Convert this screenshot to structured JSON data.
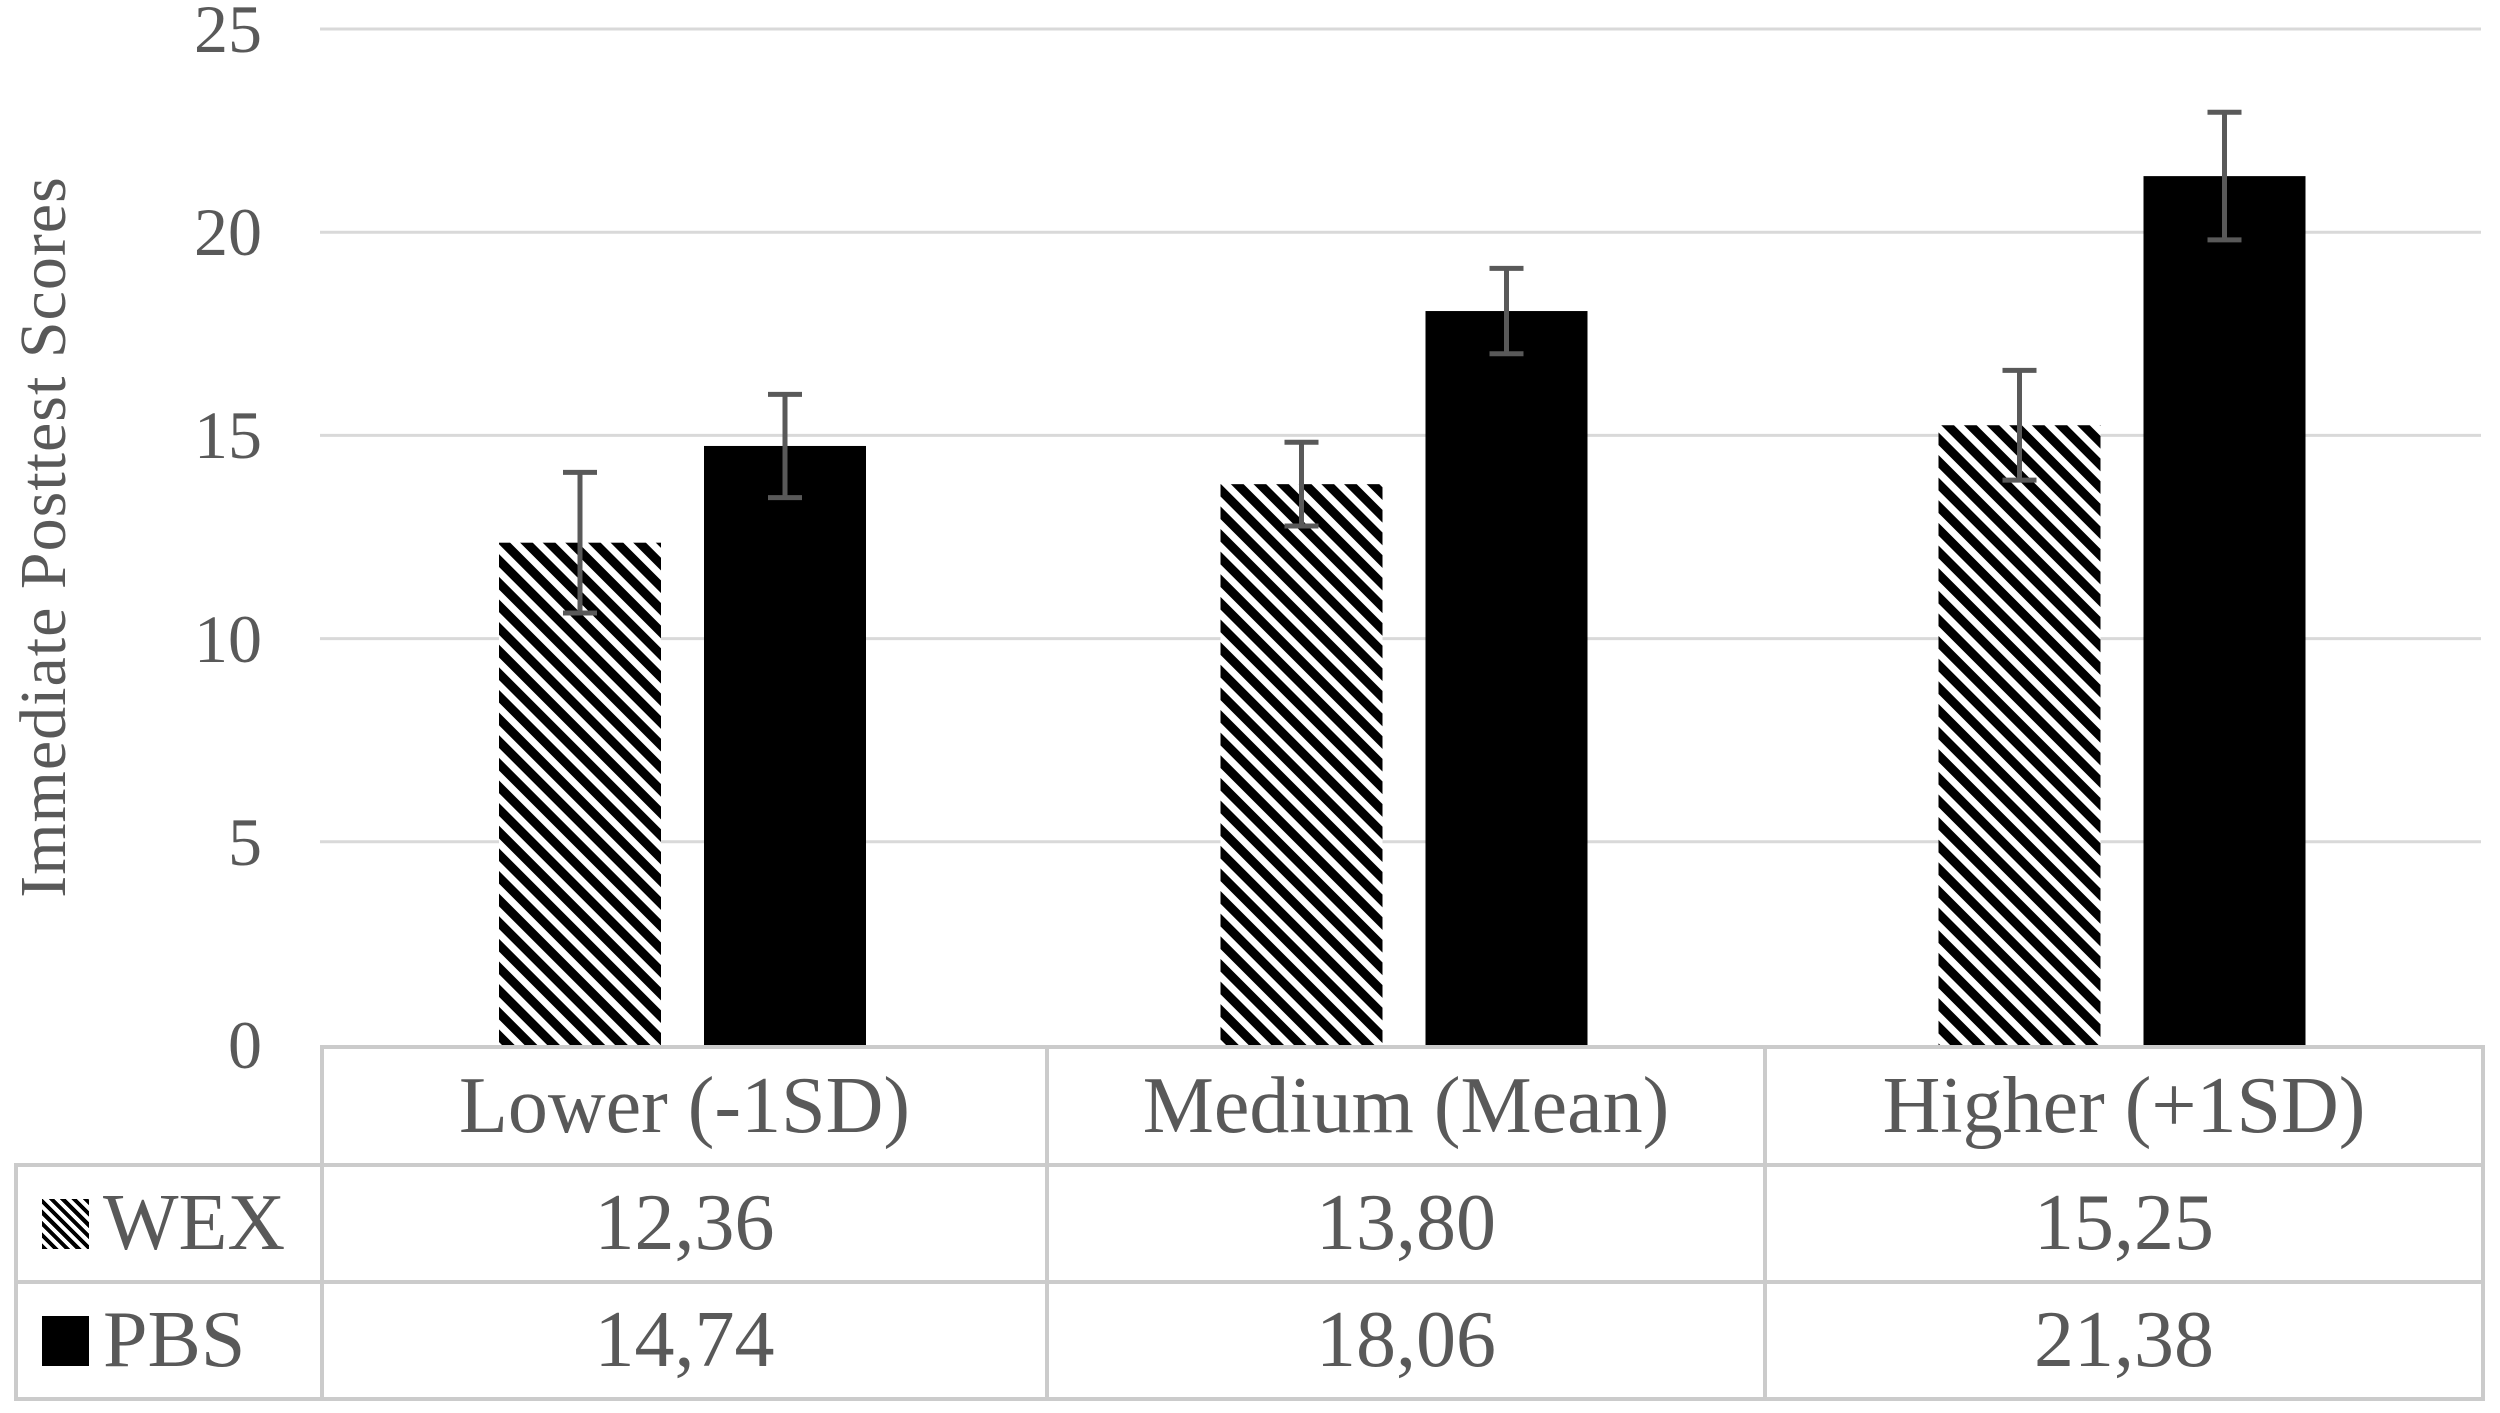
{
  "figure": {
    "kind": "grouped-bar-chart-with-data-table",
    "background": "#FFFFFF"
  },
  "chart_data": {
    "type": "bar",
    "title": "",
    "xlabel": "",
    "ylabel": "Immediate Posttest Scores",
    "categories": [
      "Lower (-1SD)",
      "Medium (Mean)",
      "Higher (+1SD)"
    ],
    "series": [
      {
        "name": "WEX",
        "fill": "hatch",
        "values": [
          12.36,
          13.8,
          15.25
        ],
        "errors": [
          1.73,
          1.03,
          1.35
        ]
      },
      {
        "name": "PBS",
        "fill": "solid",
        "values": [
          14.74,
          18.06,
          21.38
        ],
        "errors": [
          1.27,
          1.05,
          1.57
        ]
      }
    ],
    "ylim": [
      0,
      25
    ],
    "yticks": [
      0,
      5,
      10,
      15,
      20,
      25
    ],
    "grid": true,
    "error_bars": true,
    "legend_position": "table-left-column",
    "value_format": "comma-decimal"
  },
  "axis": {
    "ylabel": "Immediate Posttest Scores",
    "tick_labels": [
      "0",
      "5",
      "10",
      "15",
      "20",
      "25"
    ]
  },
  "table": {
    "columns": [
      "Lower (-1SD)",
      "Medium (Mean)",
      "Higher (+1SD)"
    ],
    "rows": [
      {
        "legend": "WEX",
        "swatch": "hatch",
        "cells": [
          "12,36",
          "13,80",
          "15,25"
        ]
      },
      {
        "legend": "PBS",
        "swatch": "solid",
        "cells": [
          "14,74",
          "18,06",
          "21,38"
        ]
      }
    ]
  },
  "colors": {
    "text": "#595959",
    "gridline": "#D9D9D9",
    "error_bar": "#595959",
    "bar_solid": "#000000",
    "hatch_stroke": "#000000",
    "table_border": "#CBCBCB",
    "background": "#FFFFFF"
  }
}
